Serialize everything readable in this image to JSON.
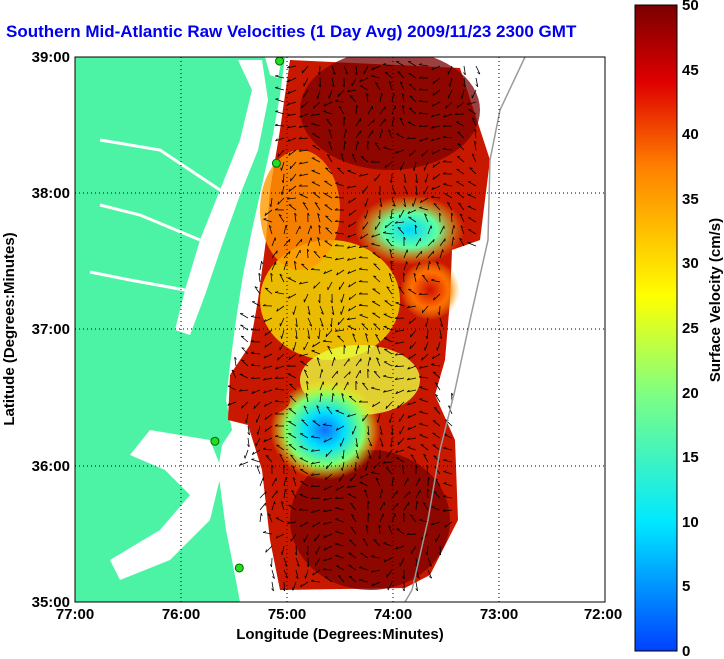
{
  "chart_data": {
    "type": "heatmap",
    "title": "Southern Mid-Atlantic Raw Velocities (1 Day Avg) 2009/11/23 2300 GMT",
    "xlabel": "Longitude (Degrees:Minutes)",
    "ylabel": "Latitude (Degrees:Minutes)",
    "xlim": [
      -77,
      -72
    ],
    "ylim": [
      35,
      39
    ],
    "x_ticks": [
      "77:00",
      "76:00",
      "75:00",
      "74:00",
      "73:00",
      "72:00"
    ],
    "y_ticks": [
      "39:00",
      "38:00",
      "37:00",
      "36:00",
      "35:00"
    ],
    "grid": true,
    "colorbar": {
      "label": "Surface Velocity (cm/s)",
      "range": [
        0,
        50
      ],
      "ticks": [
        "50",
        "45",
        "40",
        "35",
        "30",
        "25",
        "20",
        "15",
        "10",
        "5",
        "0"
      ]
    },
    "stations": [
      {
        "lon": -75.07,
        "lat": 38.97
      },
      {
        "lon": -75.1,
        "lat": 38.22
      },
      {
        "lon": -75.68,
        "lat": 36.18
      },
      {
        "lon": -75.45,
        "lat": 35.25
      }
    ],
    "velocity_features": [
      {
        "region": "northern offshore",
        "lon": -74.0,
        "lat": 38.5,
        "speed": 48
      },
      {
        "region": "offshore slow zone",
        "lon": -73.7,
        "lat": 37.65,
        "speed": 12
      },
      {
        "region": "central shelf",
        "lon": -74.4,
        "lat": 37.0,
        "speed": 27
      },
      {
        "region": "southern eddy center",
        "lon": -74.65,
        "lat": 36.2,
        "speed": 8
      },
      {
        "region": "southern offshore",
        "lon": -74.1,
        "lat": 35.6,
        "speed": 48
      },
      {
        "region": "east offshore band",
        "lon": -73.6,
        "lat": 37.3,
        "speed": 42
      }
    ]
  },
  "colors": {
    "land": "#4cf3a5",
    "title": "#0000ee"
  }
}
